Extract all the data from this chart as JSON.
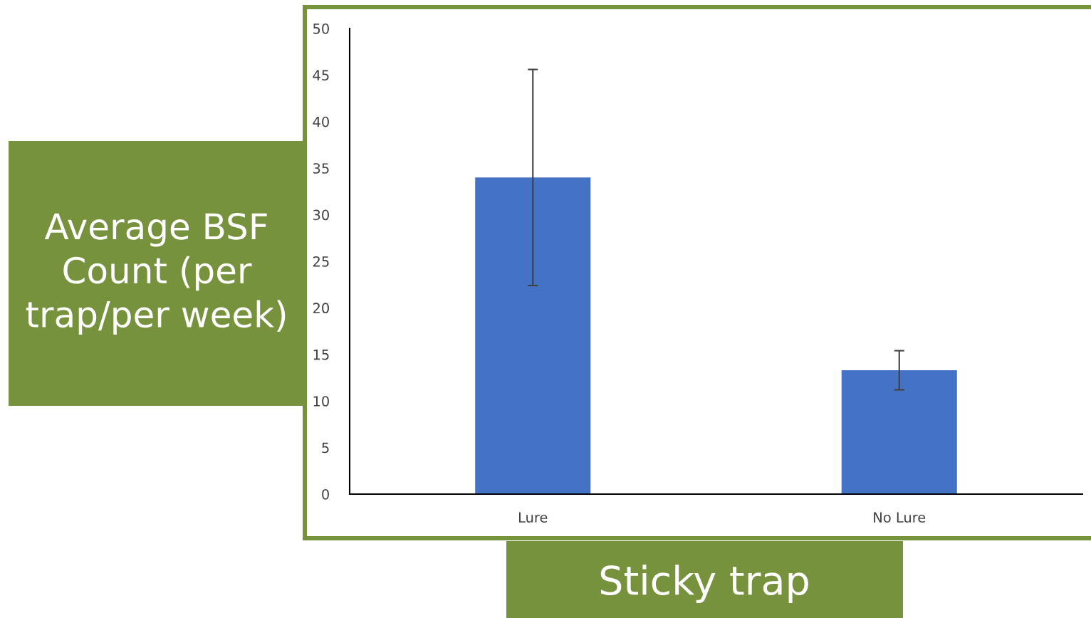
{
  "chart_data": {
    "type": "bar",
    "xlabel": "Sticky trap",
    "ylabel": "Average BSF Count (per trap/per week)",
    "categories": [
      "Lure",
      "No Lure"
    ],
    "values": [
      34,
      13.3
    ],
    "errors": [
      11.6,
      2.1
    ],
    "color": "#4472c4",
    "ylim": [
      0,
      50
    ],
    "yticks": [
      0,
      5,
      10,
      15,
      20,
      25,
      30,
      35,
      40,
      45,
      50
    ],
    "grid": false,
    "legend": false
  }
}
